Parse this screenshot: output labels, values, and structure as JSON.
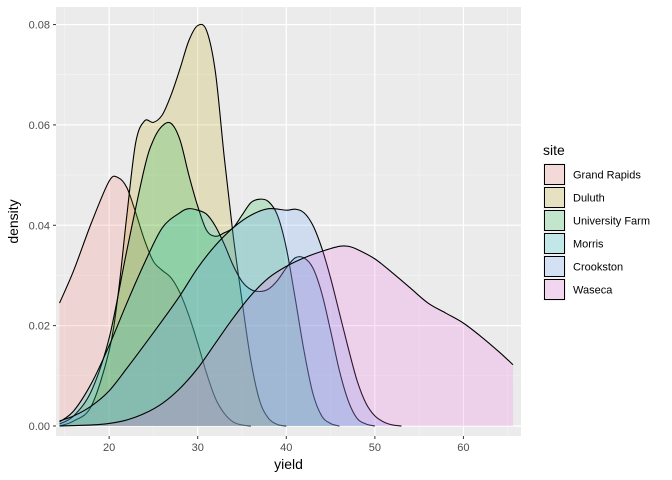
{
  "chart_data": {
    "type": "area",
    "subtype": "density",
    "xlabel": "yield",
    "ylabel": "density",
    "xlim": [
      14,
      66.5
    ],
    "ylim": [
      -0.002,
      0.0835
    ],
    "x_ticks": [
      20,
      30,
      40,
      50,
      60
    ],
    "x_tick_labels": [
      "20",
      "30",
      "40",
      "50",
      "60"
    ],
    "y_ticks": [
      0,
      0.02,
      0.04,
      0.06,
      0.08
    ],
    "y_tick_labels": [
      "0.00",
      "0.02",
      "0.04",
      "0.06",
      "0.08"
    ],
    "grid": true,
    "legend": {
      "title": "site",
      "position": "right"
    },
    "series": [
      {
        "name": "Grand Rapids",
        "color": "#F8766D",
        "points": [
          [
            14.4,
            0.0245
          ],
          [
            16,
            0.031
          ],
          [
            18,
            0.0405
          ],
          [
            20,
            0.0488
          ],
          [
            21,
            0.0495
          ],
          [
            22,
            0.0475
          ],
          [
            23,
            0.0425
          ],
          [
            24,
            0.037
          ],
          [
            25,
            0.0328
          ],
          [
            26,
            0.031
          ],
          [
            27,
            0.0295
          ],
          [
            28,
            0.0265
          ],
          [
            29,
            0.022
          ],
          [
            30,
            0.0165
          ],
          [
            31,
            0.0105
          ],
          [
            32,
            0.0055
          ],
          [
            33,
            0.0025
          ],
          [
            34,
            0.0008
          ],
          [
            35,
            0.0002
          ],
          [
            36,
            0
          ]
        ]
      },
      {
        "name": "Duluth",
        "color": "#B79F00",
        "points": [
          [
            14.4,
            0
          ],
          [
            16,
            0.001
          ],
          [
            18,
            0.004
          ],
          [
            20,
            0.015
          ],
          [
            21,
            0.026
          ],
          [
            22,
            0.042
          ],
          [
            23,
            0.0565
          ],
          [
            24,
            0.0608
          ],
          [
            25,
            0.0605
          ],
          [
            26,
            0.062
          ],
          [
            27,
            0.066
          ],
          [
            28,
            0.0712
          ],
          [
            29,
            0.0768
          ],
          [
            30,
            0.0798
          ],
          [
            31,
            0.0788
          ],
          [
            32,
            0.0705
          ],
          [
            33,
            0.0535
          ],
          [
            34,
            0.038
          ],
          [
            35,
            0.025
          ],
          [
            36,
            0.013
          ],
          [
            37,
            0.005
          ],
          [
            38,
            0.0015
          ],
          [
            39,
            0.0003
          ],
          [
            40,
            0
          ]
        ]
      },
      {
        "name": "University Farm",
        "color": "#00BA38",
        "points": [
          [
            14.4,
            0.0004
          ],
          [
            16,
            0.002
          ],
          [
            18,
            0.007
          ],
          [
            20,
            0.0175
          ],
          [
            22,
            0.035
          ],
          [
            24,
            0.0515
          ],
          [
            25,
            0.057
          ],
          [
            26,
            0.0598
          ],
          [
            27,
            0.0603
          ],
          [
            28,
            0.057
          ],
          [
            29,
            0.05
          ],
          [
            30,
            0.0438
          ],
          [
            31,
            0.039
          ],
          [
            32,
            0.0378
          ],
          [
            33,
            0.0385
          ],
          [
            34,
            0.0395
          ],
          [
            35,
            0.042
          ],
          [
            36,
            0.0445
          ],
          [
            37,
            0.0452
          ],
          [
            38,
            0.0447
          ],
          [
            39,
            0.042
          ],
          [
            40,
            0.0355
          ],
          [
            41,
            0.0255
          ],
          [
            42,
            0.015
          ],
          [
            43,
            0.0065
          ],
          [
            44,
            0.002
          ],
          [
            45,
            0.0005
          ],
          [
            46,
            0
          ]
        ]
      },
      {
        "name": "Morris",
        "color": "#00BFC4",
        "points": [
          [
            14.4,
            0.0008
          ],
          [
            16,
            0.003
          ],
          [
            18,
            0.0085
          ],
          [
            20,
            0.016
          ],
          [
            22,
            0.0245
          ],
          [
            24,
            0.0325
          ],
          [
            26,
            0.0395
          ],
          [
            28,
            0.0425
          ],
          [
            29,
            0.0433
          ],
          [
            30,
            0.043
          ],
          [
            31,
            0.0422
          ],
          [
            32,
            0.0398
          ],
          [
            33,
            0.0362
          ],
          [
            34,
            0.032
          ],
          [
            35,
            0.0288
          ],
          [
            36,
            0.0272
          ],
          [
            37,
            0.0268
          ],
          [
            38,
            0.0273
          ],
          [
            39,
            0.029
          ],
          [
            40,
            0.0315
          ],
          [
            41,
            0.0335
          ],
          [
            42,
            0.0335
          ],
          [
            43,
            0.0315
          ],
          [
            44,
            0.0265
          ],
          [
            45,
            0.019
          ],
          [
            46,
            0.011
          ],
          [
            47,
            0.005
          ],
          [
            48,
            0.0015
          ],
          [
            49,
            0.0004
          ],
          [
            50,
            0
          ]
        ]
      },
      {
        "name": "Crookston",
        "color": "#619CFF",
        "points": [
          [
            14.4,
            0.001
          ],
          [
            16,
            0.002
          ],
          [
            18,
            0.004
          ],
          [
            20,
            0.007
          ],
          [
            22,
            0.0115
          ],
          [
            24,
            0.0162
          ],
          [
            26,
            0.021
          ],
          [
            28,
            0.026
          ],
          [
            30,
            0.0315
          ],
          [
            32,
            0.036
          ],
          [
            34,
            0.0395
          ],
          [
            36,
            0.042
          ],
          [
            38,
            0.0433
          ],
          [
            40,
            0.043
          ],
          [
            41,
            0.0432
          ],
          [
            42,
            0.0425
          ],
          [
            43,
            0.04
          ],
          [
            44,
            0.0355
          ],
          [
            45,
            0.0295
          ],
          [
            46,
            0.0225
          ],
          [
            47,
            0.0155
          ],
          [
            48,
            0.009
          ],
          [
            49,
            0.0045
          ],
          [
            50,
            0.002
          ],
          [
            51,
            0.0008
          ],
          [
            52,
            0.0002
          ],
          [
            53,
            0
          ]
        ]
      },
      {
        "name": "Waseca",
        "color": "#F564E3",
        "points": [
          [
            14.4,
            0
          ],
          [
            18,
            0.0002
          ],
          [
            20,
            0.0005
          ],
          [
            22,
            0.0012
          ],
          [
            24,
            0.0025
          ],
          [
            26,
            0.0045
          ],
          [
            28,
            0.0075
          ],
          [
            30,
            0.0115
          ],
          [
            32,
            0.0165
          ],
          [
            34,
            0.0215
          ],
          [
            36,
            0.026
          ],
          [
            38,
            0.0295
          ],
          [
            40,
            0.0318
          ],
          [
            42,
            0.0335
          ],
          [
            44,
            0.0348
          ],
          [
            46,
            0.0358
          ],
          [
            47,
            0.0358
          ],
          [
            48,
            0.0352
          ],
          [
            50,
            0.0333
          ],
          [
            52,
            0.0305
          ],
          [
            54,
            0.0275
          ],
          [
            56,
            0.0245
          ],
          [
            58,
            0.0225
          ],
          [
            60,
            0.0205
          ],
          [
            62,
            0.0178
          ],
          [
            64,
            0.0148
          ],
          [
            65.6,
            0.0122
          ]
        ]
      }
    ]
  }
}
